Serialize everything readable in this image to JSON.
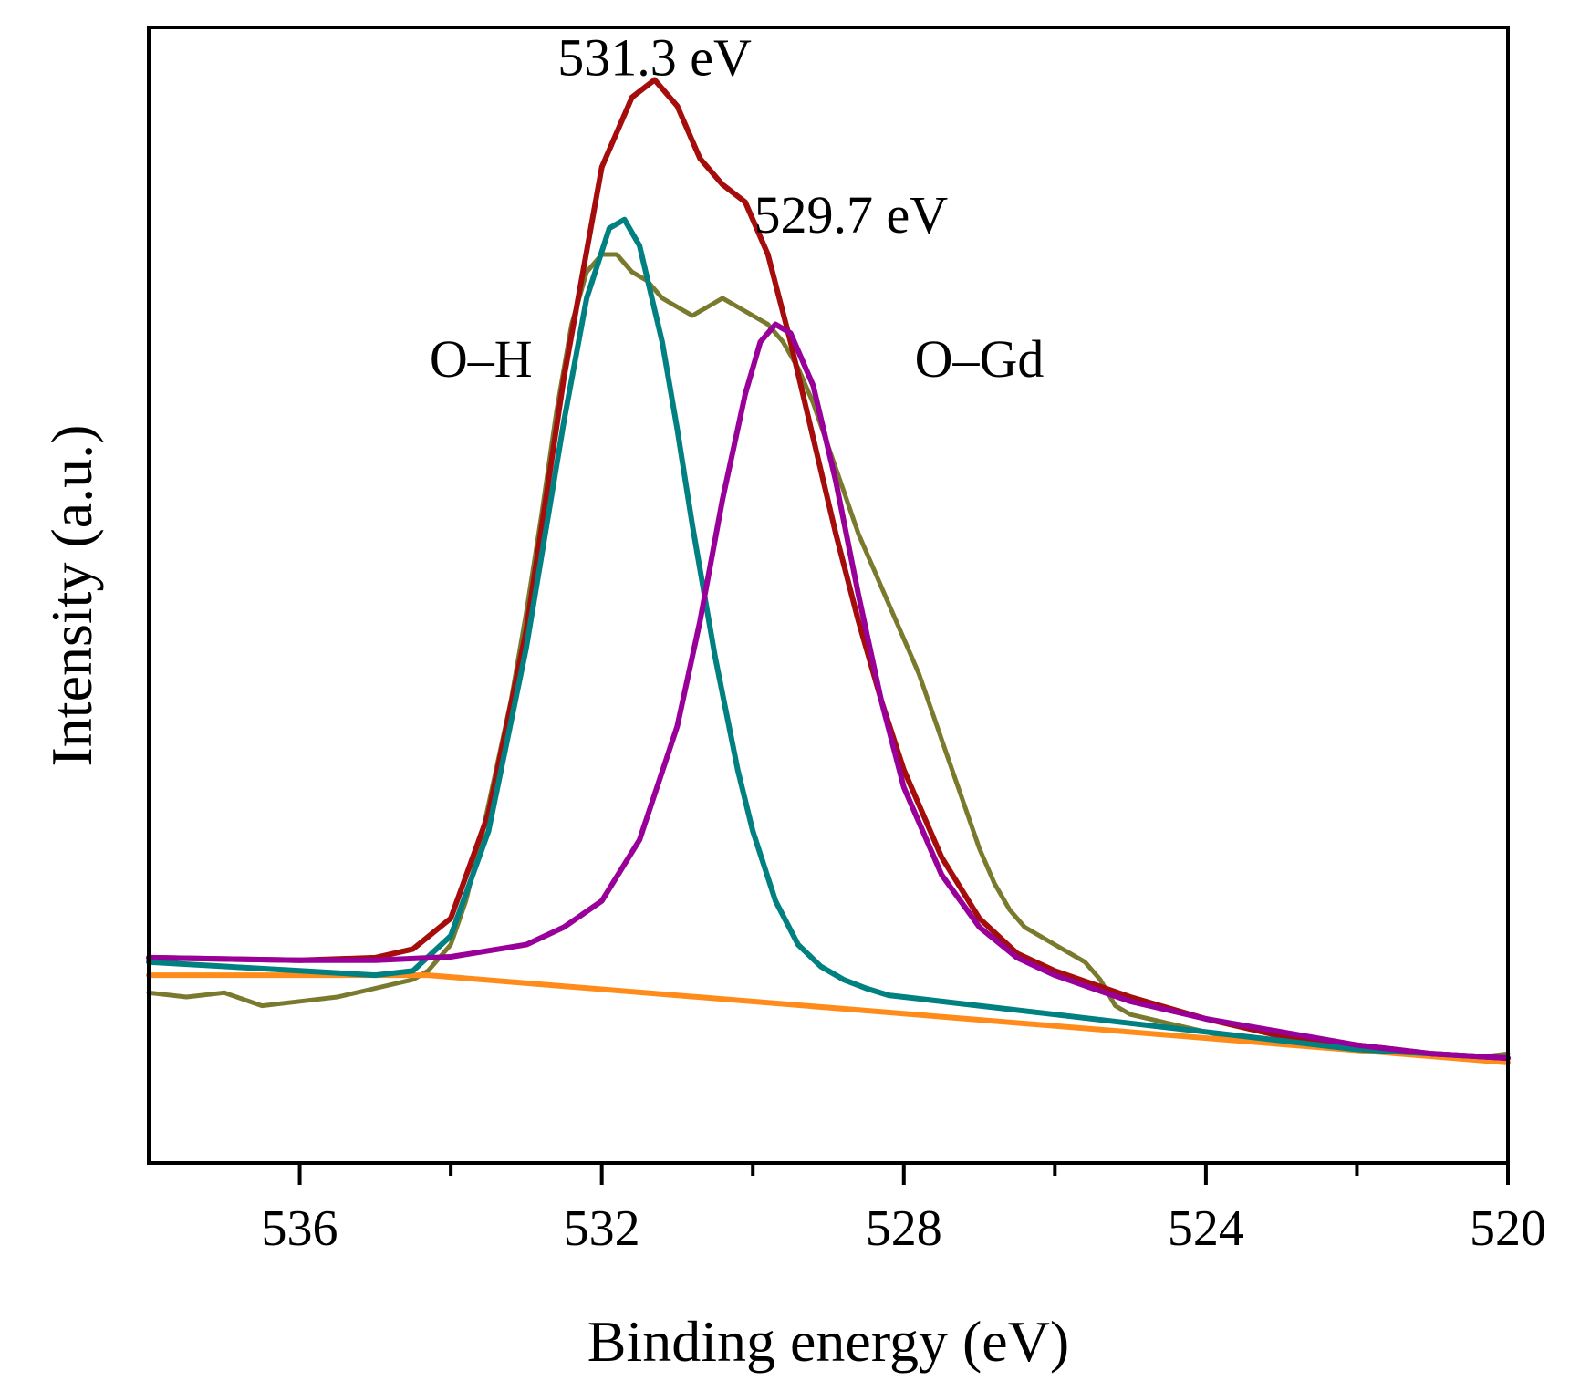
{
  "chart_data": {
    "type": "line",
    "xlabel": "Binding energy (eV)",
    "ylabel": "Intensity (a.u.)",
    "x_reversed": true,
    "xlim": [
      538,
      520
    ],
    "ylim": [
      -0.18,
      1.12
    ],
    "x_ticks": [
      536,
      532,
      528,
      524,
      520
    ],
    "x_minor_ticks": [
      534,
      530,
      526,
      522
    ],
    "y_ticks_shown": false,
    "grid": false,
    "legend": "none",
    "annotations": [
      {
        "text": "531.3 eV",
        "x": 531.3,
        "y": 1.065
      },
      {
        "text": "529.7 eV",
        "x": 528.7,
        "y": 0.885
      },
      {
        "text": "O–H",
        "x": 533.6,
        "y": 0.72
      },
      {
        "text": "O–Gd",
        "x": 527.0,
        "y": 0.72
      }
    ],
    "series": [
      {
        "color": "#7a7a2e",
        "style": "noisy-data",
        "x": [
          538.0,
          537.5,
          537.0,
          536.5,
          536.0,
          535.5,
          535.0,
          534.5,
          534.3,
          534.0,
          533.8,
          533.6,
          533.4,
          533.2,
          533.0,
          532.8,
          532.6,
          532.4,
          532.2,
          532.0,
          531.8,
          531.6,
          531.4,
          531.2,
          531.0,
          530.8,
          530.6,
          530.4,
          530.2,
          530.0,
          529.8,
          529.6,
          529.4,
          529.2,
          529.0,
          528.8,
          528.6,
          528.4,
          528.2,
          528.0,
          527.8,
          527.6,
          527.4,
          527.2,
          527.0,
          526.8,
          526.6,
          526.4,
          526.2,
          526.0,
          525.8,
          525.6,
          525.4,
          525.2,
          525.0,
          524.5,
          524.0,
          523.5,
          523.0,
          522.5,
          522.0,
          521.5,
          521.0,
          520.5,
          520.0
        ],
        "y": [
          0.015,
          0.01,
          0.015,
          0.0,
          0.005,
          0.01,
          0.02,
          0.03,
          0.04,
          0.07,
          0.12,
          0.19,
          0.27,
          0.35,
          0.45,
          0.56,
          0.68,
          0.78,
          0.84,
          0.86,
          0.86,
          0.84,
          0.83,
          0.81,
          0.8,
          0.79,
          0.8,
          0.81,
          0.8,
          0.79,
          0.78,
          0.76,
          0.73,
          0.69,
          0.64,
          0.59,
          0.54,
          0.5,
          0.46,
          0.42,
          0.38,
          0.33,
          0.28,
          0.23,
          0.18,
          0.14,
          0.11,
          0.09,
          0.08,
          0.07,
          0.06,
          0.05,
          0.03,
          0.0,
          -0.01,
          -0.02,
          -0.03,
          -0.04,
          -0.04,
          -0.045,
          -0.05,
          -0.05,
          -0.055,
          -0.06,
          -0.055
        ]
      },
      {
        "color": "#ff8c1a",
        "style": "baseline",
        "x": [
          538.0,
          534.3,
          520.0
        ],
        "y": [
          0.035,
          0.035,
          -0.065
        ]
      },
      {
        "color": "#a50d0d",
        "style": "envelope",
        "x": [
          538.0,
          536.0,
          535.0,
          534.5,
          534.0,
          533.5,
          533.0,
          532.5,
          532.0,
          531.6,
          531.3,
          531.0,
          530.7,
          530.4,
          530.1,
          529.8,
          529.5,
          529.2,
          528.9,
          528.6,
          528.3,
          528.0,
          527.5,
          527.0,
          526.5,
          526.0,
          525.0,
          524.0,
          523.0,
          522.0,
          521.0,
          520.0
        ],
        "y": [
          0.055,
          0.052,
          0.055,
          0.065,
          0.1,
          0.22,
          0.43,
          0.72,
          0.96,
          1.04,
          1.06,
          1.03,
          0.97,
          0.94,
          0.92,
          0.86,
          0.76,
          0.65,
          0.54,
          0.44,
          0.35,
          0.27,
          0.17,
          0.1,
          0.06,
          0.04,
          0.01,
          -0.015,
          -0.035,
          -0.045,
          -0.055,
          -0.06
        ]
      },
      {
        "color": "#008080",
        "style": "O-H component",
        "x": [
          538.0,
          536.0,
          535.0,
          534.5,
          534.0,
          533.5,
          533.0,
          532.5,
          532.2,
          531.9,
          531.7,
          531.5,
          531.2,
          531.0,
          530.8,
          530.5,
          530.2,
          530.0,
          529.7,
          529.4,
          529.1,
          528.8,
          528.5,
          528.2,
          528.0,
          527.0,
          526.0,
          525.0,
          524.0,
          523.0,
          522.0,
          521.0,
          520.0
        ],
        "y": [
          0.05,
          0.04,
          0.035,
          0.04,
          0.08,
          0.2,
          0.41,
          0.67,
          0.81,
          0.89,
          0.9,
          0.87,
          0.76,
          0.66,
          0.55,
          0.4,
          0.27,
          0.2,
          0.12,
          0.07,
          0.045,
          0.03,
          0.02,
          0.012,
          0.01,
          0.0,
          -0.01,
          -0.02,
          -0.03,
          -0.04,
          -0.05,
          -0.055,
          -0.06
        ]
      },
      {
        "color": "#990099",
        "style": "O-Gd component",
        "x": [
          538.0,
          536.0,
          535.0,
          534.0,
          533.0,
          532.5,
          532.0,
          531.5,
          531.0,
          530.7,
          530.4,
          530.1,
          529.9,
          529.7,
          529.5,
          529.2,
          528.9,
          528.6,
          528.3,
          528.0,
          527.5,
          527.0,
          526.5,
          526.0,
          525.5,
          525.0,
          524.0,
          523.0,
          522.0,
          521.0,
          520.0
        ],
        "y": [
          0.055,
          0.052,
          0.052,
          0.056,
          0.07,
          0.09,
          0.12,
          0.19,
          0.32,
          0.44,
          0.58,
          0.7,
          0.76,
          0.78,
          0.77,
          0.71,
          0.6,
          0.47,
          0.35,
          0.25,
          0.15,
          0.09,
          0.055,
          0.035,
          0.02,
          0.005,
          -0.015,
          -0.03,
          -0.045,
          -0.055,
          -0.06
        ]
      }
    ]
  }
}
